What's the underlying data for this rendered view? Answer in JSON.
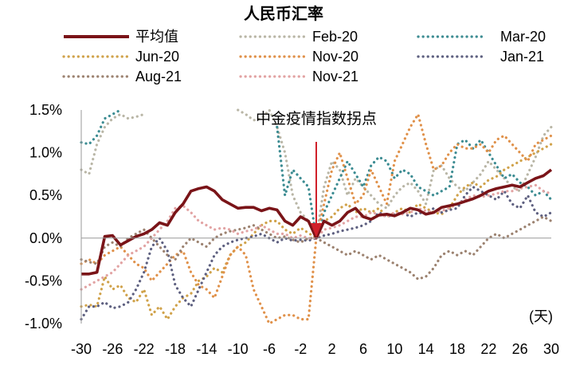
{
  "chart_data": {
    "type": "line",
    "title": "人民币汇率",
    "xlabel": "(天)",
    "ylabel": "",
    "x": [
      -30,
      -29,
      -28,
      -27,
      -26,
      -25,
      -24,
      -23,
      -22,
      -21,
      -20,
      -19,
      -18,
      -17,
      -16,
      -15,
      -14,
      -13,
      -12,
      -11,
      -10,
      -9,
      -8,
      -7,
      -6,
      -5,
      -4,
      -3,
      -2,
      -1,
      0,
      1,
      2,
      3,
      4,
      5,
      6,
      7,
      8,
      9,
      10,
      11,
      12,
      13,
      14,
      15,
      16,
      17,
      18,
      19,
      20,
      21,
      22,
      23,
      24,
      25,
      26,
      27,
      28,
      29,
      30
    ],
    "xticks": [
      -30,
      -26,
      -22,
      -18,
      -14,
      -10,
      -6,
      -2,
      2,
      6,
      10,
      14,
      18,
      22,
      26,
      30
    ],
    "xtick_labels": [
      "-30",
      "-26",
      "-22",
      "-18",
      "-14",
      "-10",
      "-6",
      "-2",
      "2",
      "6",
      "10",
      "14",
      "18",
      "22",
      "26",
      "30"
    ],
    "ylim": [
      -1.0,
      1.5
    ],
    "yticks": [
      -1.0,
      -0.5,
      0.0,
      0.5,
      1.0,
      1.5
    ],
    "ytick_labels": [
      "-1.0%",
      "-0.5%",
      "0.0%",
      "0.5%",
      "1.0%",
      "1.5%"
    ],
    "grid": false,
    "legend_position": "top",
    "annotation": {
      "text": "中金疫情指数拐点",
      "x": 0,
      "color": "#d0202a"
    },
    "series": [
      {
        "name": "平均值",
        "color": "#7a1418",
        "style": "solid",
        "values": [
          -0.42,
          -0.42,
          -0.4,
          0.02,
          0.03,
          -0.08,
          -0.03,
          0.02,
          0.05,
          0.1,
          0.18,
          0.15,
          0.3,
          0.4,
          0.55,
          0.58,
          0.6,
          0.55,
          0.45,
          0.4,
          0.35,
          0.36,
          0.36,
          0.32,
          0.35,
          0.33,
          0.2,
          0.15,
          0.25,
          0.2,
          0.0,
          0.2,
          0.15,
          0.2,
          0.3,
          0.35,
          0.25,
          0.22,
          0.27,
          0.28,
          0.26,
          0.3,
          0.35,
          0.33,
          0.28,
          0.3,
          0.36,
          0.38,
          0.4,
          0.43,
          0.46,
          0.5,
          0.55,
          0.58,
          0.6,
          0.62,
          0.6,
          0.65,
          0.7,
          0.73,
          0.8
        ]
      },
      {
        "name": "Feb-20",
        "color": "#b9b6a6",
        "style": "dotted",
        "values": [
          0.8,
          0.75,
          1.1,
          1.3,
          1.4,
          1.45,
          1.4,
          1.42,
          1.45,
          null,
          null,
          null,
          null,
          null,
          null,
          null,
          null,
          null,
          null,
          null,
          1.5,
          1.45,
          1.38,
          1.4,
          1.5,
          1.3,
          1.0,
          0.5,
          0.3,
          0.2,
          0.0,
          0.6,
          0.9,
          0.8,
          0.5,
          0.7,
          0.6,
          0.5,
          0.4,
          0.35,
          0.5,
          0.6,
          0.65,
          0.55,
          0.4,
          0.8,
          0.85,
          0.7,
          0.6,
          0.55,
          0.65,
          0.75,
          0.9,
          0.8,
          0.7,
          0.6,
          0.55,
          0.75,
          0.95,
          1.2,
          1.3
        ]
      },
      {
        "name": "Mar-20",
        "color": "#3c8c92",
        "style": "dotted",
        "values": [
          1.12,
          1.1,
          1.2,
          1.4,
          1.45,
          1.5,
          null,
          null,
          null,
          null,
          null,
          null,
          null,
          null,
          null,
          null,
          null,
          null,
          null,
          null,
          null,
          null,
          null,
          null,
          null,
          1.3,
          0.5,
          0.8,
          0.7,
          0.6,
          0.0,
          0.3,
          0.5,
          0.7,
          0.9,
          0.75,
          0.6,
          0.85,
          0.95,
          0.9,
          0.7,
          0.8,
          0.75,
          0.6,
          0.55,
          0.5,
          0.55,
          0.6,
          1.1,
          1.15,
          1.05,
          1.15,
          1.0,
          0.85,
          0.7,
          0.75,
          0.65,
          0.6,
          0.5,
          0.55,
          0.45
        ]
      },
      {
        "name": "Jun-20",
        "color": "#d0a24a",
        "style": "dotted",
        "values": [
          -0.8,
          -0.78,
          -0.8,
          -0.45,
          -0.6,
          -0.55,
          -0.7,
          -0.75,
          -0.6,
          -0.9,
          -0.8,
          -0.95,
          -0.8,
          -0.7,
          -0.65,
          -0.5,
          -0.45,
          -0.35,
          -0.4,
          -0.2,
          -0.1,
          -0.05,
          0.05,
          0.15,
          0.2,
          0.2,
          0.1,
          0.05,
          0.12,
          0.06,
          0.0,
          0.2,
          0.25,
          0.35,
          0.4,
          0.3,
          0.35,
          0.3,
          0.35,
          0.25,
          0.3,
          0.35,
          0.3,
          0.4,
          0.35,
          0.3,
          0.28,
          0.35,
          0.5,
          0.6,
          0.65,
          0.6,
          0.68,
          0.72,
          0.8,
          0.85,
          0.9,
          0.95,
          1.0,
          1.05,
          1.1
        ]
      },
      {
        "name": "Nov-20",
        "color": "#e0914a",
        "style": "dotted",
        "values": [
          -0.3,
          -0.25,
          -0.3,
          -0.2,
          -0.15,
          -0.1,
          -0.2,
          -0.3,
          -0.35,
          -0.5,
          -0.4,
          -0.3,
          -0.2,
          -0.15,
          -0.4,
          -0.55,
          -0.6,
          -0.7,
          -0.45,
          -0.2,
          -0.1,
          -0.2,
          -0.6,
          -0.8,
          -1.0,
          -0.95,
          -0.9,
          -0.9,
          -0.95,
          -0.95,
          0.0,
          0.4,
          0.8,
          1.0,
          0.7,
          0.4,
          0.5,
          0.8,
          0.6,
          0.4,
          0.9,
          1.1,
          1.3,
          1.45,
          1.1,
          0.8,
          0.85,
          1.0,
          1.1,
          1.05,
          1.05,
          1.1,
          1.0,
          1.15,
          1.2,
          1.1,
          1.0,
          0.9,
          1.1,
          1.15,
          1.2
        ]
      },
      {
        "name": "Jan-21",
        "color": "#5e6080",
        "style": "dotted",
        "values": [
          -0.95,
          -0.8,
          -0.8,
          -0.75,
          -0.82,
          -0.8,
          -0.75,
          -0.6,
          -0.4,
          -0.1,
          0.0,
          -0.15,
          -0.55,
          -0.7,
          -0.8,
          -0.6,
          -0.4,
          -0.2,
          -0.1,
          -0.05,
          -0.02,
          0.0,
          0.02,
          0.05,
          0.0,
          -0.05,
          0.0,
          -0.03,
          -0.02,
          -0.03,
          0.0,
          0.03,
          0.05,
          0.08,
          0.1,
          0.12,
          0.15,
          0.2,
          0.3,
          0.25,
          0.28,
          0.3,
          0.25,
          0.3,
          0.28,
          0.35,
          0.3,
          0.33,
          0.35,
          0.5,
          0.6,
          0.55,
          0.5,
          0.45,
          0.55,
          0.4,
          0.35,
          0.5,
          0.3,
          0.25,
          0.3
        ]
      },
      {
        "name": "Aug-21",
        "color": "#9c8270",
        "style": "dotted",
        "values": [
          -0.25,
          -0.28,
          -0.3,
          -0.1,
          -0.05,
          -0.1,
          0.0,
          0.05,
          0.1,
          0.0,
          -0.1,
          -0.2,
          -0.25,
          -0.1,
          0.0,
          -0.05,
          -0.1,
          0.0,
          0.05,
          0.08,
          0.1,
          0.12,
          0.15,
          0.1,
          0.05,
          0.0,
          0.02,
          -0.02,
          -0.05,
          0.0,
          0.0,
          -0.05,
          -0.1,
          -0.15,
          -0.2,
          -0.15,
          -0.2,
          -0.25,
          -0.2,
          -0.25,
          -0.3,
          -0.35,
          -0.4,
          -0.48,
          -0.45,
          -0.35,
          -0.2,
          -0.15,
          -0.2,
          -0.15,
          -0.2,
          -0.1,
          0.0,
          0.05,
          0.0,
          0.05,
          0.1,
          0.15,
          0.2,
          0.25,
          0.2
        ]
      },
      {
        "name": "Nov-21",
        "color": "#e2a3a3",
        "style": "dotted",
        "values": [
          -0.6,
          -0.55,
          -0.5,
          -0.45,
          -0.4,
          -0.3,
          -0.2,
          -0.15,
          -0.1,
          0.0,
          0.1,
          0.2,
          0.35,
          0.38,
          0.3,
          0.2,
          0.15,
          0.1,
          0.12,
          0.1,
          0.05,
          0.08,
          0.1,
          0.15,
          0.1,
          0.05,
          0.05,
          0.0,
          0.03,
          0.0,
          0.0,
          0.1,
          0.12,
          0.15,
          0.2,
          0.25,
          0.25,
          0.3,
          0.28,
          0.25,
          0.3,
          0.28,
          0.3,
          0.35,
          0.32,
          0.3,
          0.32,
          0.35,
          0.4,
          0.45,
          0.5,
          0.48,
          0.5,
          0.52,
          0.55,
          0.55,
          0.58,
          0.6,
          0.62,
          0.55,
          0.52
        ]
      }
    ]
  }
}
